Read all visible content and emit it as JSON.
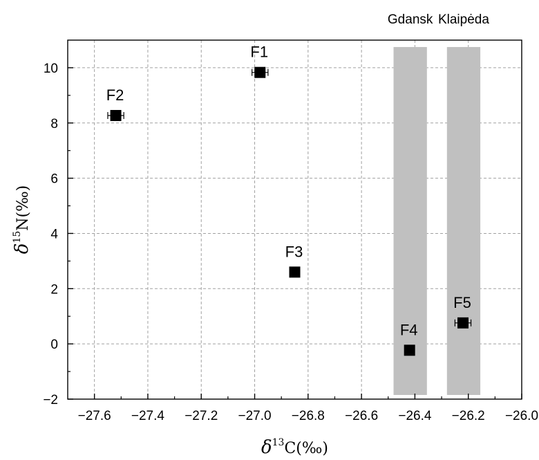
{
  "chart_data": {
    "type": "scatter",
    "xlabel": {
      "symbol": "δ",
      "superscript": "13",
      "rest": "C(‰)"
    },
    "ylabel": {
      "symbol": "δ",
      "superscript": "15",
      "rest": "N(‰)"
    },
    "xlim": [
      -27.7,
      -26.0
    ],
    "ylim": [
      -2,
      11
    ],
    "x_ticks": [
      -27.6,
      -27.4,
      -27.2,
      -27.0,
      -26.8,
      -26.6,
      -26.4,
      -26.2,
      -26.0
    ],
    "x_tick_labels": [
      "−27.6",
      "−27.4",
      "−27.2",
      "−27.0",
      "−26.8",
      "−26.6",
      "−26.4",
      "−26.2",
      "−26.0"
    ],
    "y_ticks": [
      -2,
      0,
      2,
      4,
      6,
      8,
      10
    ],
    "y_tick_labels": [
      "−2",
      "0",
      "2",
      "4",
      "6",
      "8",
      "10"
    ],
    "grid": true,
    "points": [
      {
        "label": "F1",
        "x": -26.98,
        "y": 9.83,
        "xerr": 0.03
      },
      {
        "label": "F2",
        "x": -27.52,
        "y": 8.27,
        "xerr": 0.03
      },
      {
        "label": "F3",
        "x": -26.85,
        "y": 2.6,
        "xerr": 0.0
      },
      {
        "label": "F4",
        "x": -26.42,
        "y": -0.23,
        "xerr": 0.0
      },
      {
        "label": "F5",
        "x": -26.22,
        "y": 0.76,
        "xerr": 0.03
      }
    ],
    "bands": [
      {
        "label": "Gdansk",
        "x_range": [
          -26.48,
          -26.355
        ],
        "y_range": [
          -1.85,
          10.75
        ],
        "color": "#c0c0c0"
      },
      {
        "label": "Klaipėda",
        "x_range": [
          -26.28,
          -26.155
        ],
        "y_range": [
          -1.85,
          10.75
        ],
        "color": "#c0c0c0"
      }
    ],
    "marker_color": "#000000",
    "grid_color": "#a0a0a0"
  }
}
